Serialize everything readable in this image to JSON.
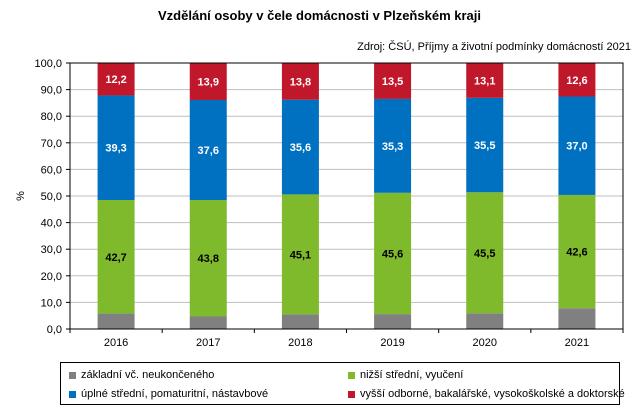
{
  "chart_data": {
    "type": "bar",
    "stacked": true,
    "title": "Vzdělání osoby v čele domácnosti v Plzeňském kraji",
    "subtitle": "Zdroj: ČSÚ,  Příjmy  a životní podmínky domácností 2021",
    "xlabel": "",
    "ylabel": "%",
    "ylim": [
      0,
      100
    ],
    "yticks": [
      "0,0",
      "10,0",
      "20,0",
      "30,0",
      "40,0",
      "50,0",
      "60,0",
      "70,0",
      "80,0",
      "90,0",
      "100,0"
    ],
    "ytick_values": [
      0,
      10,
      20,
      30,
      40,
      50,
      60,
      70,
      80,
      90,
      100
    ],
    "grid": true,
    "legend_position": "bottom",
    "categories": [
      "2016",
      "2017",
      "2018",
      "2019",
      "2020",
      "2021"
    ],
    "series": [
      {
        "name": "základní vč. neukončeného",
        "color": "#808080",
        "values": [
          5.8,
          4.7,
          5.5,
          5.6,
          5.9,
          7.8
        ],
        "labels": [
          "",
          "",
          "",
          "",
          "",
          ""
        ],
        "label_color": "#000000"
      },
      {
        "name": "nižší střední, vyučení",
        "color": "#7FBA2C",
        "values": [
          42.7,
          43.8,
          45.1,
          45.6,
          45.5,
          42.6
        ],
        "labels": [
          "42,7",
          "43,8",
          "45,1",
          "45,6",
          "45,5",
          "42,6"
        ],
        "label_color": "#000000"
      },
      {
        "name": "úplné střední, pomaturitní, nástavbové",
        "color": "#0070C0",
        "values": [
          39.3,
          37.6,
          35.6,
          35.3,
          35.5,
          37.0
        ],
        "labels": [
          "39,3",
          "37,6",
          "35,6",
          "35,3",
          "35,5",
          "37,0"
        ],
        "label_color": "#FFFFFF"
      },
      {
        "name": "vyšší odborné, bakalářské, vysokoškolské a doktorské",
        "color": "#C0172A",
        "values": [
          12.2,
          13.9,
          13.8,
          13.5,
          13.1,
          12.6
        ],
        "labels": [
          "12,2",
          "13,9",
          "13,8",
          "13,5",
          "13,1",
          "12,6"
        ],
        "label_color": "#FFFFFF"
      }
    ]
  },
  "legend": {
    "items": [
      {
        "label": "základní vč. neukončeného",
        "color": "#808080"
      },
      {
        "label": "nižší střední, vyučení",
        "color": "#7FBA2C"
      },
      {
        "label": "úplné střední, pomaturitní, nástavbové",
        "color": "#0070C0"
      },
      {
        "label": "vyšší odborné, bakalářské, vysokoškolské a doktorské",
        "color": "#C0172A"
      }
    ]
  }
}
